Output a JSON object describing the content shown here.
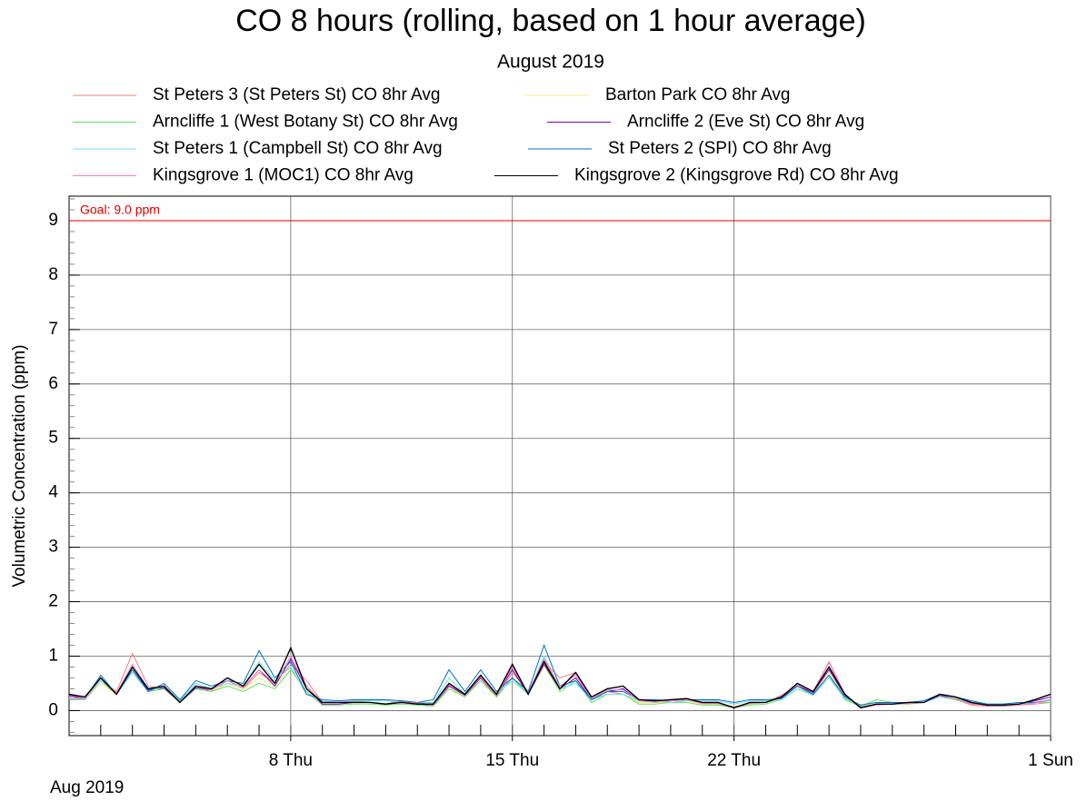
{
  "chart_data": {
    "type": "line",
    "title": "CO 8 hours (rolling, based on 1 hour average)",
    "subtitle": "August 2019",
    "y_label": "Volumetric Concentration (ppm)",
    "x_label": "Aug 2019",
    "goal": {
      "value": 9,
      "label": "Goal: 9.0 ppm",
      "color": "#e00000"
    },
    "grid": true,
    "xlim": [
      0,
      31
    ],
    "xticks": [
      {
        "value": 7,
        "label": "8 Thu"
      },
      {
        "value": 14,
        "label": "15 Thu"
      },
      {
        "value": 21,
        "label": "22 Thu"
      },
      {
        "value": 31,
        "label": "1 Sun"
      }
    ],
    "ylim": [
      -0.46,
      9.45
    ],
    "yticks": [
      0,
      1,
      2,
      3,
      4,
      5,
      6,
      7,
      8,
      9
    ],
    "x": [
      0,
      0.5,
      1,
      1.5,
      2,
      2.5,
      3,
      3.5,
      4,
      4.5,
      5,
      5.5,
      6,
      6.5,
      7,
      7.5,
      8,
      8.5,
      9,
      9.5,
      10,
      10.5,
      11,
      11.5,
      12,
      12.5,
      13,
      13.5,
      14,
      14.5,
      15,
      15.5,
      16,
      16.5,
      17,
      17.5,
      18,
      18.5,
      19,
      19.5,
      20,
      20.5,
      21,
      21.5,
      22,
      22.5,
      23,
      23.5,
      24,
      24.5,
      25,
      25.5,
      26,
      26.5,
      27,
      27.5,
      28,
      28.5,
      29,
      29.5,
      30,
      30.5,
      31
    ],
    "series": [
      {
        "name": "St Peters 3 (St Peters St) CO 8hr Avg",
        "color": "#f08080",
        "values": [
          0.2,
          0.2,
          0.55,
          0.35,
          1.05,
          0.45,
          0.4,
          0.15,
          0.45,
          0.35,
          0.5,
          0.4,
          0.7,
          0.5,
          0.85,
          0.55,
          0.15,
          0.15,
          0.18,
          0.15,
          0.12,
          0.18,
          0.15,
          0.1,
          0.45,
          0.3,
          0.6,
          0.25,
          0.7,
          0.35,
          0.9,
          0.6,
          0.7,
          0.2,
          0.35,
          0.3,
          0.15,
          0.15,
          0.18,
          0.2,
          0.12,
          0.12,
          0.05,
          0.12,
          0.15,
          0.28,
          0.45,
          0.35,
          0.9,
          0.3,
          0.05,
          0.1,
          0.12,
          0.12,
          0.15,
          0.28,
          0.2,
          0.1,
          0.08,
          0.08,
          0.1,
          0.12,
          0.15
        ]
      },
      {
        "name": "Barton Park CO 8hr Avg",
        "color": "#f0f080",
        "values": [
          0.22,
          0.2,
          0.5,
          0.3,
          0.7,
          0.35,
          0.4,
          0.15,
          0.4,
          0.35,
          0.5,
          0.4,
          0.6,
          0.45,
          0.8,
          0.4,
          0.12,
          0.12,
          0.15,
          0.15,
          0.12,
          0.15,
          0.12,
          0.1,
          0.4,
          0.28,
          0.55,
          0.25,
          0.6,
          0.3,
          0.8,
          0.4,
          0.6,
          0.2,
          0.3,
          0.3,
          0.15,
          0.15,
          0.15,
          0.18,
          0.12,
          0.12,
          0.08,
          0.12,
          0.15,
          0.22,
          0.4,
          0.3,
          0.7,
          0.25,
          0.08,
          0.12,
          0.12,
          0.12,
          0.15,
          0.25,
          0.2,
          0.12,
          0.1,
          0.1,
          0.12,
          0.15,
          0.18
        ]
      },
      {
        "name": "Arncliffe 1 (West Botany St) CO 8hr Avg",
        "color": "#60e060",
        "values": [
          0.25,
          0.2,
          0.55,
          0.3,
          0.7,
          0.35,
          0.4,
          0.15,
          0.4,
          0.35,
          0.45,
          0.35,
          0.5,
          0.4,
          0.75,
          0.35,
          0.1,
          0.1,
          0.12,
          0.12,
          0.1,
          0.12,
          0.1,
          0.08,
          0.4,
          0.25,
          0.55,
          0.25,
          0.6,
          0.3,
          0.85,
          0.35,
          0.55,
          0.15,
          0.3,
          0.3,
          0.12,
          0.12,
          0.15,
          0.15,
          0.1,
          0.1,
          0.05,
          0.1,
          0.12,
          0.2,
          0.4,
          0.3,
          0.65,
          0.2,
          0.08,
          0.2,
          0.15,
          0.12,
          0.15,
          0.25,
          0.2,
          0.12,
          0.1,
          0.1,
          0.12,
          0.15,
          0.15
        ]
      },
      {
        "name": "Arncliffe 2 (Eve St) CO 8hr Avg",
        "color": "#8000c0",
        "values": [
          0.28,
          0.22,
          0.6,
          0.3,
          0.75,
          0.38,
          0.42,
          0.15,
          0.42,
          0.38,
          0.55,
          0.42,
          0.75,
          0.45,
          0.95,
          0.4,
          0.12,
          0.12,
          0.15,
          0.15,
          0.12,
          0.15,
          0.12,
          0.1,
          0.45,
          0.28,
          0.6,
          0.28,
          0.75,
          0.3,
          0.85,
          0.4,
          0.6,
          0.2,
          0.35,
          0.4,
          0.18,
          0.16,
          0.18,
          0.2,
          0.14,
          0.14,
          0.06,
          0.14,
          0.15,
          0.24,
          0.45,
          0.33,
          0.75,
          0.28,
          0.06,
          0.12,
          0.12,
          0.14,
          0.15,
          0.28,
          0.22,
          0.14,
          0.1,
          0.1,
          0.12,
          0.18,
          0.25
        ]
      },
      {
        "name": "St Peters 1 (Campbell St) CO 8hr Avg",
        "color": "#70e0e0",
        "values": [
          0.22,
          0.2,
          0.55,
          0.32,
          0.7,
          0.35,
          0.45,
          0.18,
          0.5,
          0.4,
          0.5,
          0.45,
          0.9,
          0.55,
          0.8,
          0.3,
          0.18,
          0.15,
          0.18,
          0.18,
          0.18,
          0.15,
          0.15,
          0.15,
          0.6,
          0.3,
          0.65,
          0.3,
          0.55,
          0.3,
          1.0,
          0.4,
          0.5,
          0.2,
          0.3,
          0.3,
          0.18,
          0.18,
          0.15,
          0.18,
          0.18,
          0.18,
          0.12,
          0.18,
          0.18,
          0.2,
          0.4,
          0.28,
          0.6,
          0.22,
          0.1,
          0.15,
          0.15,
          0.15,
          0.15,
          0.25,
          0.22,
          0.15,
          0.12,
          0.12,
          0.15,
          0.15,
          0.18
        ]
      },
      {
        "name": "St Peters 2 (SPI) CO 8hr Avg",
        "color": "#0070d0",
        "values": [
          0.25,
          0.22,
          0.65,
          0.3,
          0.75,
          0.35,
          0.5,
          0.2,
          0.55,
          0.45,
          0.55,
          0.5,
          1.1,
          0.6,
          0.9,
          0.3,
          0.2,
          0.18,
          0.2,
          0.2,
          0.2,
          0.18,
          0.15,
          0.2,
          0.75,
          0.35,
          0.75,
          0.35,
          0.6,
          0.35,
          1.2,
          0.45,
          0.55,
          0.2,
          0.35,
          0.35,
          0.2,
          0.2,
          0.18,
          0.2,
          0.2,
          0.2,
          0.15,
          0.2,
          0.2,
          0.22,
          0.45,
          0.3,
          0.65,
          0.25,
          0.1,
          0.15,
          0.15,
          0.15,
          0.18,
          0.3,
          0.25,
          0.18,
          0.12,
          0.12,
          0.15,
          0.15,
          0.2
        ]
      },
      {
        "name": "Kingsgrove 1 (MOC1) CO 8hr Avg",
        "color": "#f080c0",
        "values": [
          0.25,
          0.22,
          0.6,
          0.32,
          0.85,
          0.4,
          0.45,
          0.15,
          0.45,
          0.38,
          0.55,
          0.42,
          0.75,
          0.5,
          1.0,
          0.45,
          0.15,
          0.15,
          0.16,
          0.15,
          0.12,
          0.16,
          0.14,
          0.1,
          0.48,
          0.3,
          0.62,
          0.28,
          0.8,
          0.32,
          0.95,
          0.45,
          0.65,
          0.22,
          0.38,
          0.38,
          0.18,
          0.16,
          0.18,
          0.2,
          0.13,
          0.13,
          0.05,
          0.13,
          0.15,
          0.26,
          0.48,
          0.35,
          0.88,
          0.3,
          0.05,
          0.1,
          0.12,
          0.13,
          0.15,
          0.3,
          0.22,
          0.12,
          0.09,
          0.09,
          0.1,
          0.14,
          0.2
        ]
      },
      {
        "name": "Kingsgrove 2 (Kingsgrove Rd) CO 8hr Avg",
        "color": "#000000",
        "values": [
          0.3,
          0.25,
          0.6,
          0.3,
          0.8,
          0.4,
          0.45,
          0.15,
          0.45,
          0.4,
          0.6,
          0.45,
          0.85,
          0.5,
          1.15,
          0.4,
          0.15,
          0.15,
          0.15,
          0.15,
          0.12,
          0.15,
          0.12,
          0.12,
          0.5,
          0.3,
          0.65,
          0.3,
          0.85,
          0.3,
          0.9,
          0.4,
          0.7,
          0.25,
          0.4,
          0.45,
          0.2,
          0.18,
          0.2,
          0.22,
          0.15,
          0.15,
          0.05,
          0.15,
          0.15,
          0.25,
          0.5,
          0.35,
          0.8,
          0.3,
          0.05,
          0.12,
          0.12,
          0.15,
          0.15,
          0.3,
          0.25,
          0.15,
          0.1,
          0.1,
          0.12,
          0.2,
          0.3
        ]
      }
    ]
  }
}
